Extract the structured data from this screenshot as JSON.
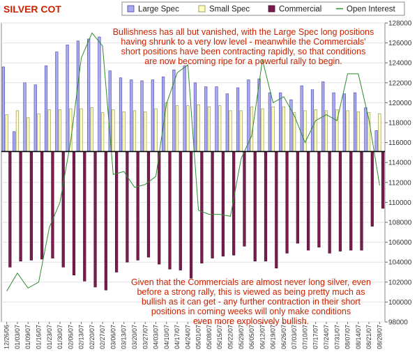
{
  "title": "SILVER COT",
  "colors": {
    "large_spec": "#aaaaf0",
    "small_spec": "#ffffbb",
    "commercial": "#7a1c50",
    "open_interest": "#2e8b2e",
    "text_red": "#cc2200"
  },
  "annotations": {
    "top": [
      "Bullishness has all but vanished, with the Large Spec long positions",
      "having shrunk to a very low level - meanwhile the Commercials'",
      "short positions have been contracting rapidly, so that conditions",
      "are now becoming ripe for a powerful rally to begin."
    ],
    "bottom": [
      "Given that the Commercials are almost never long silver, even",
      "before a strong rally, this is viewed as being pretty much as",
      "bullish as it can get - any further contraction in their short",
      "positions in coming weeks will only make conditions",
      "even more explosively bullish."
    ]
  },
  "chart_data": {
    "type": "bar",
    "title": "SILVER COT",
    "legend": {
      "placement": "top",
      "items": [
        "Large Spec",
        "Small Spec",
        "Commercial",
        "Open Interest"
      ]
    },
    "categories": [
      "12/26/06",
      "01/03/07",
      "01/09/07",
      "01/16/07",
      "01/23/07",
      "01/30/07",
      "02/06/07",
      "02/13/07",
      "02/20/07",
      "02/27/07",
      "03/06/07",
      "03/13/07",
      "03/20/07",
      "03/27/07",
      "04/03/07",
      "04/10/07",
      "04/17/07",
      "04/24/07",
      "05/01/07",
      "05/08/07",
      "05/15/07",
      "05/22/07",
      "05/29/07",
      "06/05/07",
      "06/12/07",
      "06/19/07",
      "06/26/07",
      "07/03/07",
      "07/10/07",
      "07/17/07",
      "07/24/07",
      "07/31/07",
      "08/07/07",
      "08/14/07",
      "08/21/07",
      "08/28/07"
    ],
    "x_tick_labels": [
      "12/26/06",
      "01/03/07",
      "01/09/07",
      "01/16/07",
      "01/23/07",
      "01/30/07",
      "02/06/07",
      "02/13/07",
      "02/20/07",
      "02/27/07",
      "03/06/07",
      "03/13/07",
      "03/20/07",
      "03/27/07",
      "04/03/07",
      "04/10/07",
      "04/17/07",
      "04/24/07",
      "05/01/07",
      "05/08/07",
      "05/15/07",
      "05/22/07",
      "05/29/07",
      "06/05/07",
      "06/12/07",
      "06/19/07",
      "06/26/07",
      "07/03/07",
      "07/10/07",
      "07/17/07",
      "07/24/07",
      "07/31/07",
      "08/07/07",
      "08/14/07",
      "08/21/07",
      "08/28/07"
    ],
    "y_axis": {
      "position": "right",
      "range": [
        98000,
        128000
      ],
      "tick_labels": [
        "98000",
        "100000",
        "102000",
        "104000",
        "106000",
        "108000",
        "110000",
        "112000",
        "114000",
        "116000",
        "118000",
        "120000",
        "122000",
        "124000",
        "126000",
        "128000"
      ],
      "grid": true
    },
    "zero_line_level": 115100,
    "series": [
      {
        "name": "Large Spec",
        "values": [
          123600,
          117100,
          122000,
          121800,
          123700,
          125100,
          125800,
          126200,
          126400,
          126600,
          123200,
          122500,
          122300,
          122200,
          122300,
          122600,
          123300,
          123700,
          122000,
          121600,
          121600,
          120900,
          121500,
          122300,
          122400,
          121000,
          121000,
          120300,
          121700,
          121300,
          122100,
          121000,
          120900,
          121000,
          119500,
          117200
        ]
      },
      {
        "name": "Small Spec",
        "values": [
          118800,
          119200,
          118500,
          118900,
          119300,
          119300,
          119400,
          119400,
          119500,
          119000,
          119300,
          119100,
          119200,
          119100,
          119400,
          120000,
          119700,
          119700,
          119800,
          119600,
          119700,
          119200,
          119200,
          119600,
          119400,
          119600,
          119600,
          119000,
          119200,
          119300,
          119200,
          119300,
          119200,
          119100,
          119000,
          118900
        ]
      },
      {
        "name": "Commercial",
        "values": [
          103500,
          104100,
          104200,
          104300,
          104400,
          103500,
          102700,
          102100,
          101500,
          101200,
          103000,
          104000,
          104200,
          104500,
          103800,
          103300,
          103200,
          102400,
          103900,
          104400,
          104600,
          104700,
          105600,
          104100,
          104100,
          103400,
          104900,
          105900,
          105200,
          105500,
          104900,
          105100,
          105200,
          105200,
          107600,
          109400
        ]
      },
      {
        "name": "Open Interest",
        "values": [
          101100,
          102900,
          101400,
          102000,
          107500,
          110000,
          116100,
          124500,
          127000,
          125700,
          112800,
          113100,
          111500,
          111800,
          112600,
          119900,
          123000,
          123800,
          109200,
          108800,
          108800,
          108600,
          114400,
          116700,
          124300,
          120000,
          120600,
          118700,
          116000,
          118200,
          118800,
          118200,
          122900,
          122900,
          118300,
          111700
        ]
      }
    ]
  }
}
